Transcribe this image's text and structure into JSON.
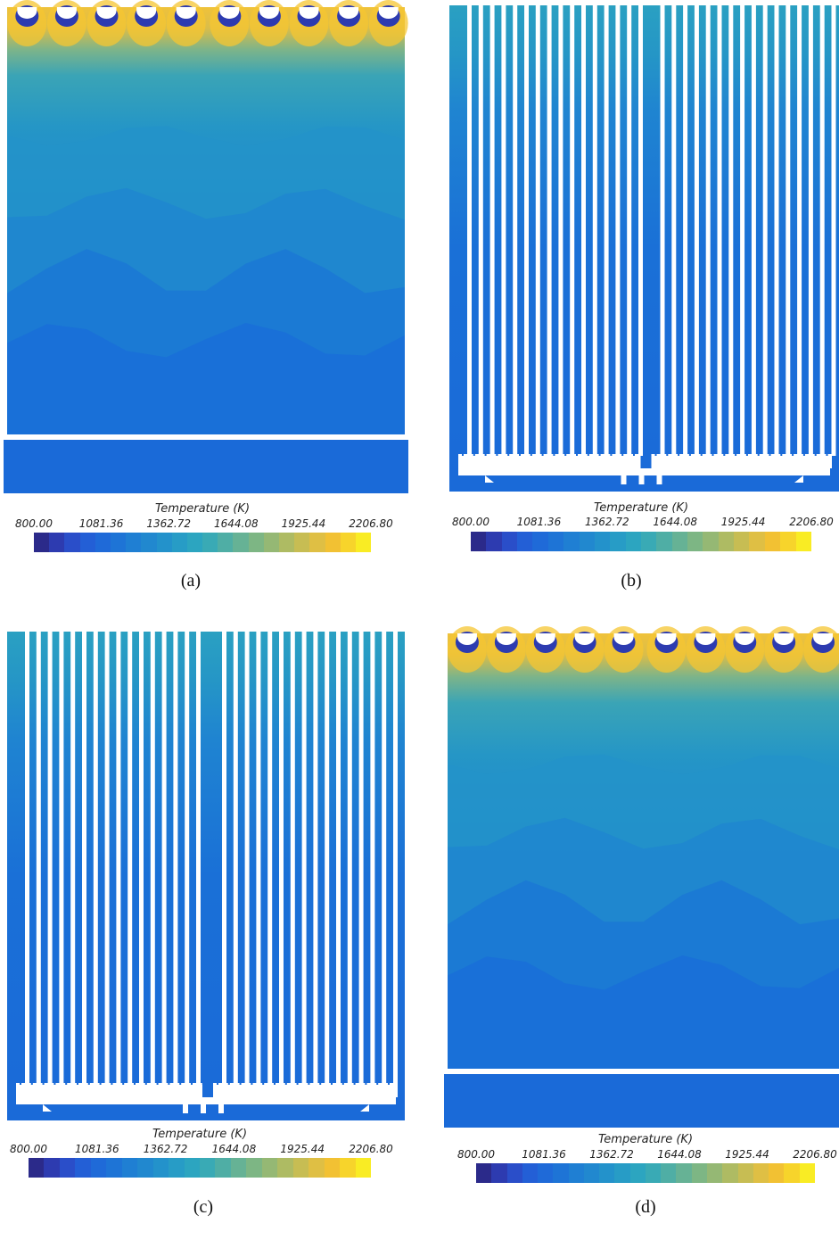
{
  "legend": {
    "title": "Temperature (K)",
    "ticks": [
      "800.00",
      "1081.36",
      "1362.72",
      "1644.08",
      "1925.44",
      "2206.80"
    ],
    "colors": [
      "#2b2a8a",
      "#2d3bb0",
      "#2a4ec9",
      "#235fd6",
      "#1f6ad8",
      "#1e74d6",
      "#1f7fd3",
      "#2188cf",
      "#2392cb",
      "#279cc6",
      "#2ca5c0",
      "#39aab5",
      "#4faea5",
      "#66b295",
      "#7db684",
      "#95b874",
      "#aebb63",
      "#c7bd53",
      "#dfbf44",
      "#f2c133",
      "#f7d42b",
      "#f9ec24"
    ]
  },
  "panels": [
    {
      "caption": "(a)",
      "kind": "pool"
    },
    {
      "caption": "(b)",
      "kind": "rods"
    },
    {
      "caption": "(c)",
      "kind": "rods"
    },
    {
      "caption": "(d)",
      "kind": "pool"
    }
  ]
}
